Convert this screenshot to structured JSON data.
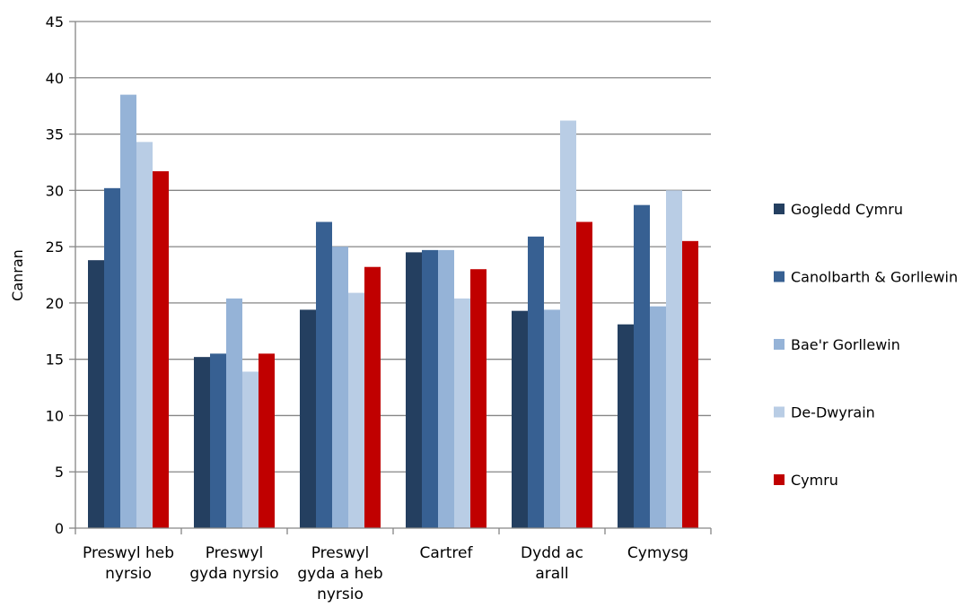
{
  "chart_data": {
    "type": "bar",
    "title": "",
    "xlabel": "",
    "ylabel": "Canran",
    "ylim": [
      0,
      45
    ],
    "yticks": [
      0,
      5,
      10,
      15,
      20,
      25,
      30,
      35,
      40,
      45
    ],
    "grid": true,
    "legend_position": "right",
    "categories": [
      [
        "Preswyl heb",
        "nyrsio"
      ],
      [
        "Preswyl",
        "gyda nyrsio"
      ],
      [
        "Preswyl",
        "gyda a heb",
        "nyrsio"
      ],
      [
        "Cartref"
      ],
      [
        "Dydd ac",
        "arall"
      ],
      [
        "Cymysg"
      ]
    ],
    "series": [
      {
        "name": "Gogledd Cymru",
        "color": "#243F60",
        "values": [
          23.8,
          15.2,
          19.4,
          24.5,
          19.3,
          18.1
        ]
      },
      {
        "name": "Canolbarth & Gorllewin",
        "color": "#376092",
        "values": [
          30.2,
          15.5,
          27.2,
          24.7,
          25.9,
          28.7
        ]
      },
      {
        "name": "Bae'r Gorllewin",
        "color": "#95B3D7",
        "values": [
          38.5,
          20.4,
          25.0,
          24.7,
          19.4,
          19.7
        ]
      },
      {
        "name": "De-Dwyrain",
        "color": "#B9CDE5",
        "values": [
          34.3,
          13.9,
          20.9,
          20.4,
          36.2,
          30.0
        ]
      },
      {
        "name": "Cymru",
        "color": "#C00000",
        "values": [
          31.7,
          15.5,
          23.2,
          23.0,
          27.2,
          25.5
        ]
      }
    ]
  }
}
